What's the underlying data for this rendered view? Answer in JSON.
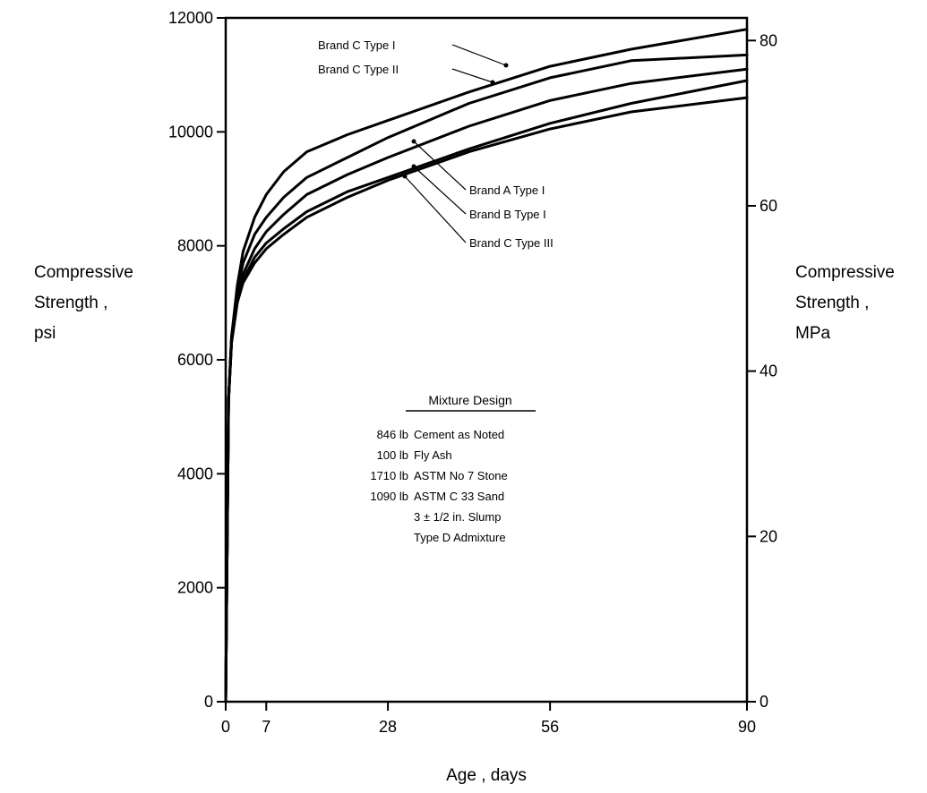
{
  "chart_data": {
    "type": "line",
    "title": "",
    "xlabel": "Age , days",
    "ylabel_left": [
      "Compressive",
      "Strength ,",
      "psi"
    ],
    "ylabel_right": [
      "Compressive",
      "Strength ,",
      "MPa"
    ],
    "xlim": [
      0,
      90
    ],
    "ylim": [
      0,
      12000
    ],
    "x_ticks": [
      0,
      7,
      28,
      56,
      90
    ],
    "y_ticks_left": [
      0,
      2000,
      4000,
      6000,
      8000,
      10000,
      12000
    ],
    "y_ticks_left_labels": [
      "0",
      "2000",
      "4000",
      "6000",
      "8000",
      "10000",
      "12000"
    ],
    "y_ticks_right": [
      0,
      20,
      40,
      60,
      80
    ],
    "y_ticks_right_labels": [
      "0",
      "20",
      "40",
      "60",
      "80"
    ],
    "grid": false,
    "series": [
      {
        "name": "Brand C Type I",
        "x": [
          0,
          0.5,
          1,
          2,
          3,
          5,
          7,
          10,
          14,
          21,
          28,
          42,
          56,
          70,
          90
        ],
        "y": [
          0,
          5300,
          6400,
          7300,
          7900,
          8500,
          8900,
          9300,
          9650,
          9950,
          10200,
          10700,
          11150,
          11450,
          11800
        ]
      },
      {
        "name": "Brand C Type II",
        "x": [
          0,
          0.5,
          1,
          2,
          3,
          5,
          7,
          10,
          14,
          21,
          28,
          42,
          56,
          70,
          90
        ],
        "y": [
          0,
          5300,
          6400,
          7200,
          7700,
          8200,
          8500,
          8850,
          9200,
          9550,
          9900,
          10500,
          10950,
          11250,
          11350
        ]
      },
      {
        "name": "Brand A Type I",
        "x": [
          0,
          0.5,
          1,
          2,
          3,
          5,
          7,
          10,
          14,
          21,
          28,
          42,
          56,
          70,
          90
        ],
        "y": [
          0,
          5300,
          6300,
          7100,
          7500,
          7950,
          8250,
          8550,
          8900,
          9250,
          9550,
          10100,
          10550,
          10850,
          11100
        ]
      },
      {
        "name": "Brand B Type I",
        "x": [
          0,
          0.5,
          1,
          2,
          3,
          5,
          7,
          10,
          14,
          21,
          28,
          42,
          56,
          70,
          90
        ],
        "y": [
          0,
          5300,
          6300,
          7000,
          7400,
          7800,
          8050,
          8300,
          8600,
          8950,
          9200,
          9700,
          10150,
          10500,
          10900
        ]
      },
      {
        "name": "Brand C Type III",
        "x": [
          0,
          0.5,
          1,
          2,
          3,
          5,
          7,
          10,
          14,
          21,
          28,
          42,
          56,
          70,
          90
        ],
        "y": [
          0,
          5300,
          6300,
          7000,
          7350,
          7700,
          7950,
          8200,
          8500,
          8850,
          9150,
          9650,
          10050,
          10350,
          10600
        ]
      }
    ],
    "annotations": {
      "mixture_design_title": "Mixture Design",
      "mixture_design_rows": [
        {
          "qty": "846 lb",
          "item": "Cement as Noted"
        },
        {
          "qty": "100 lb",
          "item": "Fly Ash"
        },
        {
          "qty": "1710 lb",
          "item": "ASTM No 7 Stone"
        },
        {
          "qty": "1090 lb",
          "item": "ASTM C 33 Sand"
        },
        {
          "qty": "",
          "item": "3 ± 1/2 in. Slump"
        },
        {
          "qty": "",
          "item": "Type D Admixture"
        }
      ]
    }
  }
}
